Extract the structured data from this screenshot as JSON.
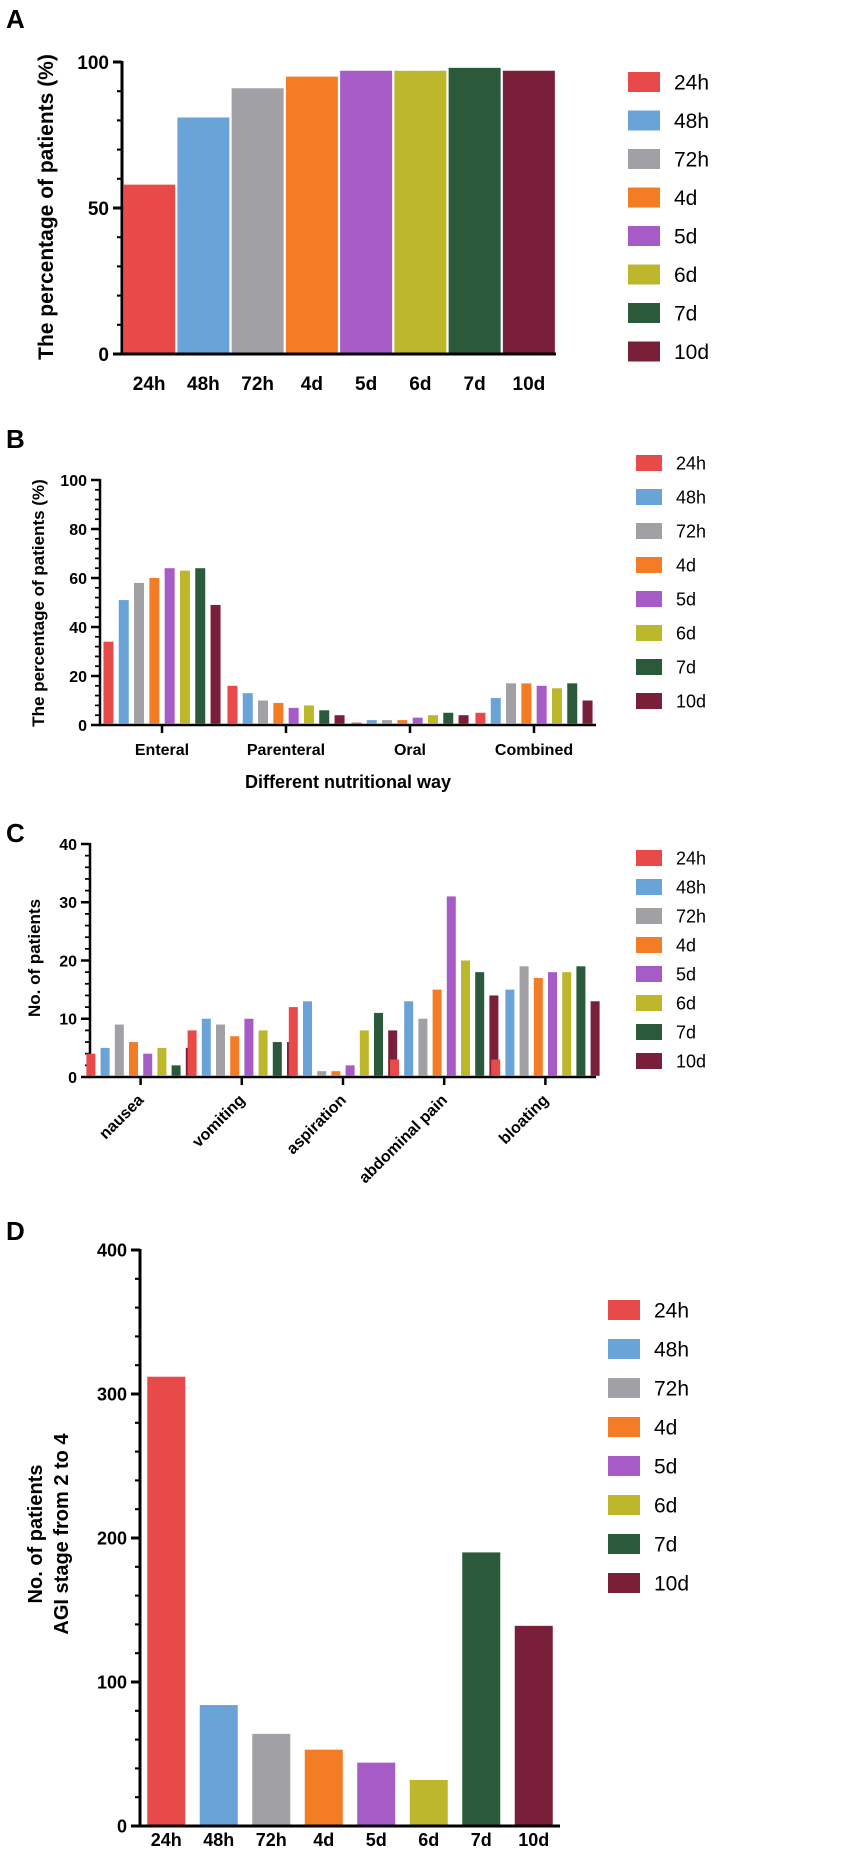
{
  "colors": {
    "24h": "#e84a4a",
    "48h": "#6aa3d8",
    "72h": "#a0a0a5",
    "4d": "#f47c25",
    "5d": "#a65bc7",
    "6d": "#bdb72c",
    "7d": "#2a5a3a",
    "10d": "#7a1f3a"
  },
  "chart_data": [
    {
      "panel": "A",
      "type": "bar",
      "title": "",
      "ylabel": "The percentage of patients (%)",
      "xlabel": "",
      "ylim": [
        0,
        100
      ],
      "yticks": [
        "0",
        "50",
        "100"
      ],
      "categories": [
        "24h",
        "48h",
        "72h",
        "4d",
        "5d",
        "6d",
        "7d",
        "10d"
      ],
      "values": [
        58,
        81,
        91,
        95,
        97,
        97,
        98,
        97
      ],
      "legend": [
        "24h",
        "48h",
        "72h",
        "4d",
        "5d",
        "6d",
        "7d",
        "10d"
      ]
    },
    {
      "panel": "B",
      "type": "bar",
      "ylabel": "The percentage of patients (%)",
      "xlabel": "Different nutritional way",
      "ylim": [
        0,
        100
      ],
      "yticks": [
        "0",
        "20",
        "40",
        "60",
        "80",
        "100"
      ],
      "categories": [
        "Enteral",
        "Parenteral",
        "Oral",
        "Combined"
      ],
      "series": [
        {
          "name": "24h",
          "values": [
            34,
            16,
            1,
            5
          ]
        },
        {
          "name": "48h",
          "values": [
            51,
            13,
            2,
            11
          ]
        },
        {
          "name": "72h",
          "values": [
            58,
            10,
            2,
            17
          ]
        },
        {
          "name": "4d",
          "values": [
            60,
            9,
            2,
            17
          ]
        },
        {
          "name": "5d",
          "values": [
            64,
            7,
            3,
            16
          ]
        },
        {
          "name": "6d",
          "values": [
            63,
            8,
            4,
            15
          ]
        },
        {
          "name": "7d",
          "values": [
            64,
            6,
            5,
            17
          ]
        },
        {
          "name": "10d",
          "values": [
            49,
            4,
            4,
            10
          ]
        }
      ],
      "legend": [
        "24h",
        "48h",
        "72h",
        "4d",
        "5d",
        "6d",
        "7d",
        "10d"
      ]
    },
    {
      "panel": "C",
      "type": "bar",
      "ylabel": "No. of patients",
      "xlabel": "",
      "ylim": [
        0,
        40
      ],
      "yticks": [
        "0",
        "10",
        "20",
        "30",
        "40"
      ],
      "categories": [
        "nausea",
        "vomiting",
        "aspiration",
        "abdominal pain",
        "bloating"
      ],
      "series": [
        {
          "name": "24h",
          "values": [
            4,
            8,
            12,
            3,
            3
          ]
        },
        {
          "name": "48h",
          "values": [
            5,
            10,
            13,
            13,
            15
          ]
        },
        {
          "name": "72h",
          "values": [
            9,
            9,
            1,
            10,
            19
          ]
        },
        {
          "name": "4d",
          "values": [
            6,
            7,
            1,
            15,
            17
          ]
        },
        {
          "name": "5d",
          "values": [
            4,
            10,
            2,
            31,
            18
          ]
        },
        {
          "name": "6d",
          "values": [
            5,
            8,
            8,
            20,
            18
          ]
        },
        {
          "name": "7d",
          "values": [
            2,
            6,
            11,
            18,
            19
          ]
        },
        {
          "name": "10d",
          "values": [
            5,
            6,
            8,
            14,
            13
          ]
        }
      ],
      "legend": [
        "24h",
        "48h",
        "72h",
        "4d",
        "5d",
        "6d",
        "7d",
        "10d"
      ]
    },
    {
      "panel": "D",
      "type": "bar",
      "ylabel": "No. of patients",
      "ylabel2": "AGI stage from 2 to 4",
      "xlabel": "",
      "ylim": [
        0,
        400
      ],
      "yticks": [
        "0",
        "100",
        "200",
        "300",
        "400"
      ],
      "categories": [
        "24h",
        "48h",
        "72h",
        "4d",
        "5d",
        "6d",
        "7d",
        "10d"
      ],
      "values": [
        312,
        84,
        64,
        53,
        44,
        32,
        190,
        139
      ],
      "legend": [
        "24h",
        "48h",
        "72h",
        "4d",
        "5d",
        "6d",
        "7d",
        "10d"
      ]
    }
  ]
}
